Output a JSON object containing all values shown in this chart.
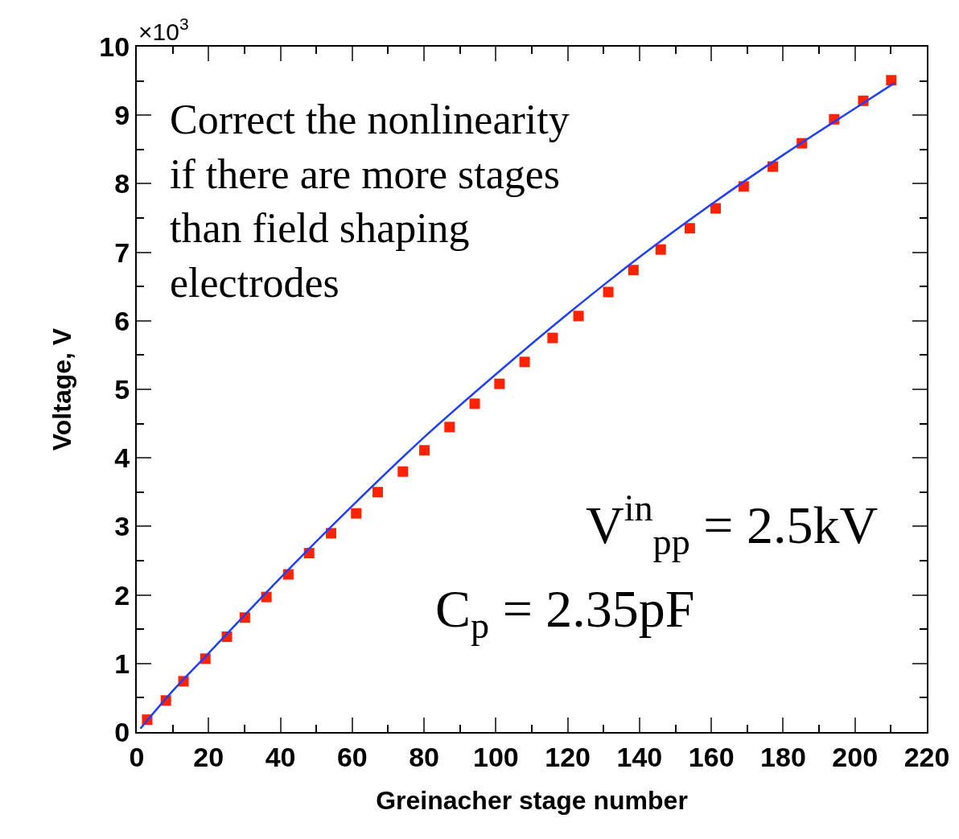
{
  "chart_data": {
    "type": "scatter",
    "xlabel": "Greinacher stage number",
    "ylabel": "Voltage, V",
    "xlim": [
      0,
      220
    ],
    "xticks": [
      0,
      20,
      40,
      60,
      80,
      100,
      120,
      140,
      160,
      180,
      200,
      220
    ],
    "ylim": [
      0,
      10
    ],
    "yticks": [
      0,
      1,
      2,
      3,
      4,
      5,
      6,
      7,
      8,
      9,
      10
    ],
    "series": [
      {
        "marker": "square",
        "color": "#ff2200",
        "x": [
          2.9,
          8.1,
          13.0,
          19.1,
          25.1,
          30.1,
          36.1,
          42.2,
          48.0,
          54.1,
          61.1,
          67.1,
          74.1,
          80.1,
          87.1,
          94.1,
          101.0,
          108.0,
          115.8,
          123.0,
          131.3,
          138.3,
          145.9,
          154.0,
          161.2,
          169.0,
          177.1,
          185.2,
          194.2,
          202.3,
          210.1
        ],
        "values": [
          0.18,
          0.46,
          0.74,
          1.07,
          1.39,
          1.67,
          1.97,
          2.3,
          2.61,
          2.9,
          3.19,
          3.5,
          3.8,
          4.11,
          4.45,
          4.79,
          5.08,
          5.4,
          5.75,
          6.07,
          6.42,
          6.74,
          7.04,
          7.35,
          7.64,
          7.96,
          8.25,
          8.59,
          8.94,
          9.21,
          9.51
        ]
      },
      {
        "type": "line",
        "marker": "none",
        "color": "#1f3fff",
        "x": [
          1,
          10,
          20,
          40,
          60,
          80,
          100,
          120,
          140,
          160,
          180,
          200,
          211
        ],
        "values": [
          0.05,
          0.6,
          1.15,
          2.25,
          3.3,
          4.3,
          5.22,
          6.1,
          6.93,
          7.7,
          8.42,
          9.1,
          9.47
        ]
      }
    ],
    "annotations": [
      "×10$^{3}$",
      "Correct the nonlinearity\nif there are more stages\nthan field shaping\nelectrodes",
      "V$^{in}$$_{pp}$ = 2.5kV",
      "C$_{p}$ = 2.35pF"
    ]
  }
}
